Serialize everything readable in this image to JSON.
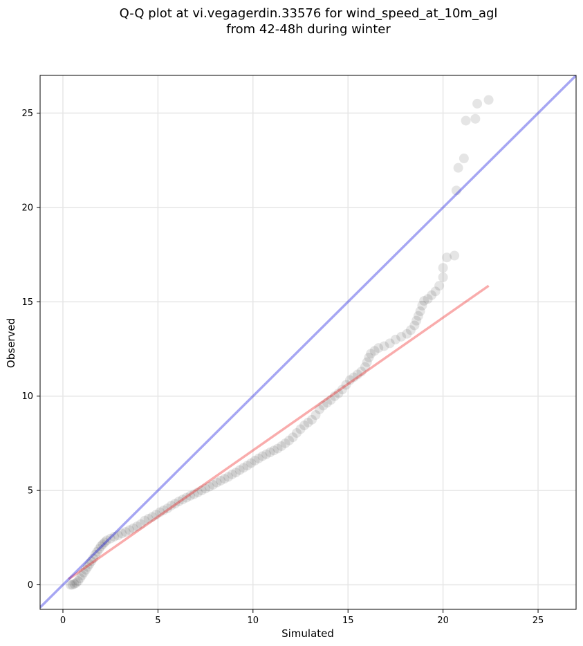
{
  "chart_data": {
    "type": "scatter",
    "title_lines": [
      "Q-Q plot at vi.vegagerdin.33576 for wind_speed_at_10m_agl",
      "from 42-48h during winter"
    ],
    "xlabel": "Simulated",
    "ylabel": "Observed",
    "xlim": [
      -1.2,
      27
    ],
    "ylim": [
      -1.3,
      27
    ],
    "xticks": [
      0,
      5,
      10,
      15,
      20,
      25
    ],
    "yticks": [
      0,
      5,
      10,
      15,
      20,
      25
    ],
    "grid": true,
    "identity_line": {
      "x": [
        -1.2,
        27
      ],
      "y": [
        -1.2,
        27
      ],
      "color": "#0000dd"
    },
    "fit_line": {
      "x": [
        0.3,
        22.4
      ],
      "y": [
        0.3,
        15.85
      ],
      "color": "#ee1111"
    },
    "points_color": "#000000",
    "points": [
      [
        0.4,
        0.0
      ],
      [
        0.5,
        0.0
      ],
      [
        0.6,
        0.05
      ],
      [
        0.7,
        0.1
      ],
      [
        0.8,
        0.2
      ],
      [
        0.9,
        0.35
      ],
      [
        1.0,
        0.5
      ],
      [
        1.1,
        0.65
      ],
      [
        1.2,
        0.8
      ],
      [
        1.3,
        0.95
      ],
      [
        1.4,
        1.1
      ],
      [
        1.5,
        1.25
      ],
      [
        1.6,
        1.4
      ],
      [
        1.7,
        1.6
      ],
      [
        1.8,
        1.75
      ],
      [
        1.9,
        1.9
      ],
      [
        2.0,
        2.05
      ],
      [
        2.1,
        2.15
      ],
      [
        2.2,
        2.25
      ],
      [
        2.3,
        2.35
      ],
      [
        2.5,
        2.45
      ],
      [
        2.7,
        2.55
      ],
      [
        2.9,
        2.62
      ],
      [
        3.1,
        2.72
      ],
      [
        3.3,
        2.8
      ],
      [
        3.5,
        2.9
      ],
      [
        3.7,
        3.0
      ],
      [
        3.9,
        3.1
      ],
      [
        4.1,
        3.22
      ],
      [
        4.3,
        3.4
      ],
      [
        4.5,
        3.5
      ],
      [
        4.7,
        3.6
      ],
      [
        4.9,
        3.72
      ],
      [
        5.1,
        3.85
      ],
      [
        5.3,
        3.95
      ],
      [
        5.5,
        4.05
      ],
      [
        5.7,
        4.2
      ],
      [
        5.9,
        4.3
      ],
      [
        6.1,
        4.42
      ],
      [
        6.3,
        4.52
      ],
      [
        6.5,
        4.62
      ],
      [
        6.7,
        4.72
      ],
      [
        6.9,
        4.8
      ],
      [
        7.1,
        4.9
      ],
      [
        7.3,
        5.0
      ],
      [
        7.5,
        5.1
      ],
      [
        7.7,
        5.2
      ],
      [
        7.9,
        5.3
      ],
      [
        8.1,
        5.42
      ],
      [
        8.3,
        5.52
      ],
      [
        8.5,
        5.62
      ],
      [
        8.7,
        5.72
      ],
      [
        8.9,
        5.85
      ],
      [
        9.1,
        5.95
      ],
      [
        9.3,
        6.08
      ],
      [
        9.5,
        6.2
      ],
      [
        9.7,
        6.32
      ],
      [
        9.9,
        6.45
      ],
      [
        10.1,
        6.58
      ],
      [
        10.3,
        6.7
      ],
      [
        10.5,
        6.82
      ],
      [
        10.7,
        6.92
      ],
      [
        10.9,
        7.02
      ],
      [
        11.1,
        7.12
      ],
      [
        11.3,
        7.22
      ],
      [
        11.5,
        7.35
      ],
      [
        11.7,
        7.5
      ],
      [
        11.9,
        7.65
      ],
      [
        12.1,
        7.82
      ],
      [
        12.3,
        8.05
      ],
      [
        12.5,
        8.25
      ],
      [
        12.7,
        8.45
      ],
      [
        12.9,
        8.6
      ],
      [
        13.1,
        8.75
      ],
      [
        13.3,
        9.0
      ],
      [
        13.5,
        9.3
      ],
      [
        13.7,
        9.5
      ],
      [
        13.9,
        9.65
      ],
      [
        14.1,
        9.8
      ],
      [
        14.3,
        10.0
      ],
      [
        14.5,
        10.15
      ],
      [
        14.7,
        10.35
      ],
      [
        14.9,
        10.6
      ],
      [
        15.1,
        10.85
      ],
      [
        15.3,
        11.0
      ],
      [
        15.5,
        11.15
      ],
      [
        15.7,
        11.3
      ],
      [
        15.9,
        11.55
      ],
      [
        16.0,
        11.8
      ],
      [
        16.1,
        12.05
      ],
      [
        16.2,
        12.25
      ],
      [
        16.4,
        12.4
      ],
      [
        16.6,
        12.55
      ],
      [
        16.9,
        12.65
      ],
      [
        17.2,
        12.8
      ],
      [
        17.5,
        13.0
      ],
      [
        17.8,
        13.15
      ],
      [
        18.1,
        13.3
      ],
      [
        18.3,
        13.5
      ],
      [
        18.5,
        13.75
      ],
      [
        18.6,
        14.0
      ],
      [
        18.7,
        14.25
      ],
      [
        18.8,
        14.5
      ],
      [
        18.9,
        14.8
      ],
      [
        19.0,
        15.05
      ],
      [
        19.2,
        15.15
      ],
      [
        19.4,
        15.35
      ],
      [
        19.6,
        15.55
      ],
      [
        19.8,
        15.85
      ],
      [
        20.0,
        16.3
      ],
      [
        20.0,
        16.8
      ],
      [
        20.2,
        17.35
      ],
      [
        20.6,
        17.45
      ],
      [
        20.7,
        20.9
      ],
      [
        20.8,
        22.1
      ],
      [
        21.1,
        22.6
      ],
      [
        21.2,
        24.6
      ],
      [
        21.7,
        24.7
      ],
      [
        21.8,
        25.5
      ],
      [
        22.4,
        25.7
      ]
    ]
  }
}
